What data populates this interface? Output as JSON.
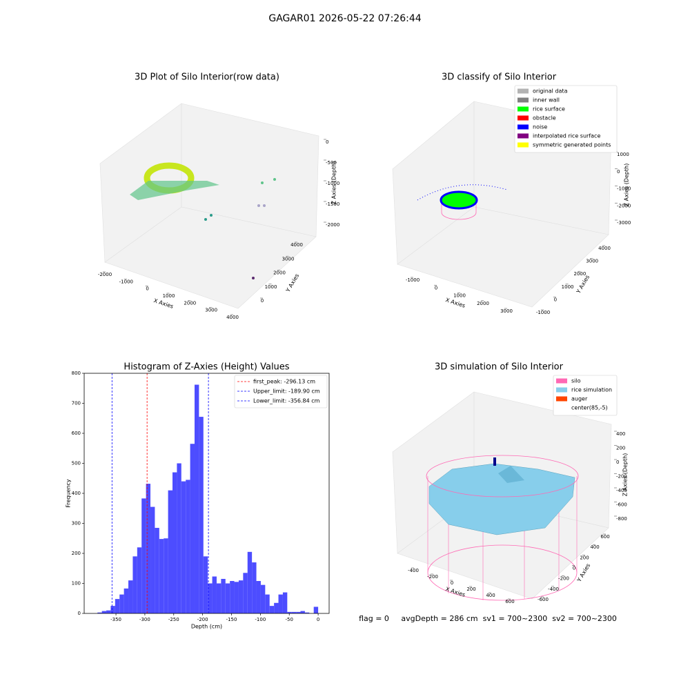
{
  "title": "GAGAR01 2026-05-22 07:26:44",
  "footer": "flag = 0     avgDepth = 286 cm  sv1 = 700~2300  sv2 = 700~2300",
  "chart_data": [
    {
      "type": "scatter3d",
      "title": "3D Plot of Silo Interior(row data)",
      "xlabel": "X Axies",
      "ylabel": "Y Axies",
      "zlabel": "Z Axies (Depth)",
      "xticks": [
        -2000,
        -1000,
        0,
        1000,
        2000,
        3000,
        4000
      ],
      "yticks": [
        0,
        1000,
        2000,
        3000,
        4000
      ],
      "zticks": [
        0,
        -500,
        -1000,
        -1500,
        -2000
      ]
    },
    {
      "type": "scatter3d",
      "title": "3D classify of Silo Interior",
      "xlabel": "X Axies",
      "ylabel": "Y Axies",
      "zlabel": "Z Axies (Depth)",
      "xticks": [
        -1000,
        0,
        1000,
        2000,
        3000
      ],
      "yticks": [
        -1000,
        0,
        1000,
        2000,
        3000,
        4000
      ],
      "zticks": [
        1000,
        0,
        -1000,
        -2000,
        -3000
      ],
      "legend": [
        {
          "name": "original data",
          "color": "#b3b3b3"
        },
        {
          "name": "inner wall",
          "color": "#808080"
        },
        {
          "name": "rice surface",
          "color": "#00ff00"
        },
        {
          "name": "obstacle",
          "color": "#ff0000"
        },
        {
          "name": "noise",
          "color": "#0000ff"
        },
        {
          "name": "interpolated rice surface",
          "color": "#800080"
        },
        {
          "name": "symmetric generated points",
          "color": "#ffff00"
        }
      ]
    },
    {
      "type": "histogram",
      "title": "Histogram of Z-Axies (Height) Values",
      "xlabel": "Depth (cm)",
      "ylabel": "Frequency",
      "color": "#4d4dff",
      "bins": [
        -382,
        -374.36,
        -366.72,
        -359.08,
        -351.44,
        -343.8,
        -336.16,
        -328.52,
        -320.88,
        -313.24,
        -305.6,
        -297.96,
        -290.32,
        -282.68,
        -275.04,
        -267.4,
        -259.76,
        -252.12,
        -244.48,
        -236.84,
        -229.2,
        -221.56,
        -213.92,
        -206.28,
        -198.64,
        -191,
        -183.36,
        -175.72,
        -168.08,
        -160.44,
        -152.8,
        -145.16,
        -137.52,
        -129.88,
        -122.24,
        -114.6,
        -106.96,
        -99.32,
        -91.68,
        -84.04,
        -76.4,
        -68.76,
        -61.12,
        -53.48,
        -45.84,
        -38.2,
        -30.56,
        -22.92,
        -15.28,
        -7.64,
        0
      ],
      "counts": [
        3,
        8,
        10,
        25,
        48,
        63,
        83,
        110,
        190,
        220,
        383,
        432,
        355,
        285,
        248,
        250,
        410,
        470,
        500,
        440,
        445,
        565,
        762,
        655,
        190,
        100,
        123,
        100,
        115,
        100,
        108,
        105,
        110,
        135,
        205,
        170,
        108,
        95,
        63,
        25,
        35,
        63,
        70,
        5,
        5,
        5,
        8,
        3,
        0,
        22
      ],
      "xlim": [
        -405,
        19
      ],
      "ylim": [
        0,
        800
      ],
      "xticks": [
        -350,
        -300,
        -250,
        -200,
        -150,
        -100,
        -50,
        0
      ],
      "yticks": [
        0,
        100,
        200,
        300,
        400,
        500,
        600,
        700,
        800
      ],
      "lines": [
        {
          "name": "first_peak: -296.13 cm",
          "value": -296.13,
          "color": "#ff0000"
        },
        {
          "name": "Upper_limit: -189.90 cm",
          "value": -189.9,
          "color": "#0000ff"
        },
        {
          "name": "Lower_limit: -356.84 cm",
          "value": -356.84,
          "color": "#0000ff"
        }
      ],
      "legend_position": "upper right"
    },
    {
      "type": "surface3d",
      "title": "3D simulation of Silo Interior",
      "xlabel": "X Axies",
      "ylabel": "Y Axies",
      "zlabel": "Z Axies (Depth)",
      "xticks": [
        -400,
        -200,
        0,
        200,
        400,
        600
      ],
      "yticks": [
        -600,
        -400,
        -200,
        0,
        200,
        400,
        600
      ],
      "zticks": [
        400,
        200,
        0,
        -200,
        -400,
        -600,
        -800
      ],
      "legend": [
        {
          "name": "silo",
          "color": "#ff69b4"
        },
        {
          "name": "rice simulation",
          "color": "#87ceeb"
        },
        {
          "name": "auger",
          "color": "#ff4500"
        },
        {
          "name": "center(85,-5)",
          "color": "#ffffff"
        }
      ]
    }
  ]
}
